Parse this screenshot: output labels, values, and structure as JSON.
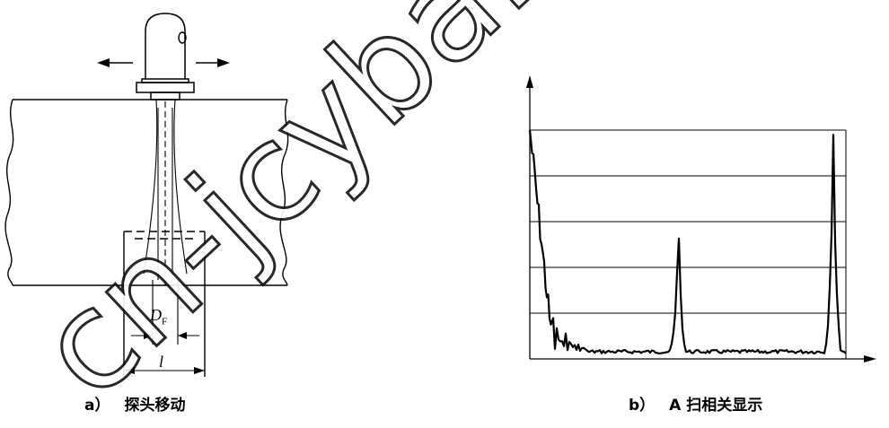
{
  "panel_a": {
    "caption_label": "a）",
    "caption_text": "探头移动",
    "dimension_focus_label": "D",
    "dimension_focus_sub": "F",
    "dimension_width_label": "l"
  },
  "panel_b": {
    "caption_label": "b）",
    "caption_text": "A 扫相关显示",
    "ascan": {
      "grid_lines": 5,
      "peaks": [
        {
          "position": 0.0,
          "height": 1.0
        },
        {
          "position": 0.47,
          "height": 0.62
        },
        {
          "position": 0.96,
          "height": 1.0
        }
      ]
    }
  },
  "watermark": {
    "text": "cn-jcyba.c"
  },
  "colors": {
    "line": "#000000",
    "background": "#ffffff"
  }
}
